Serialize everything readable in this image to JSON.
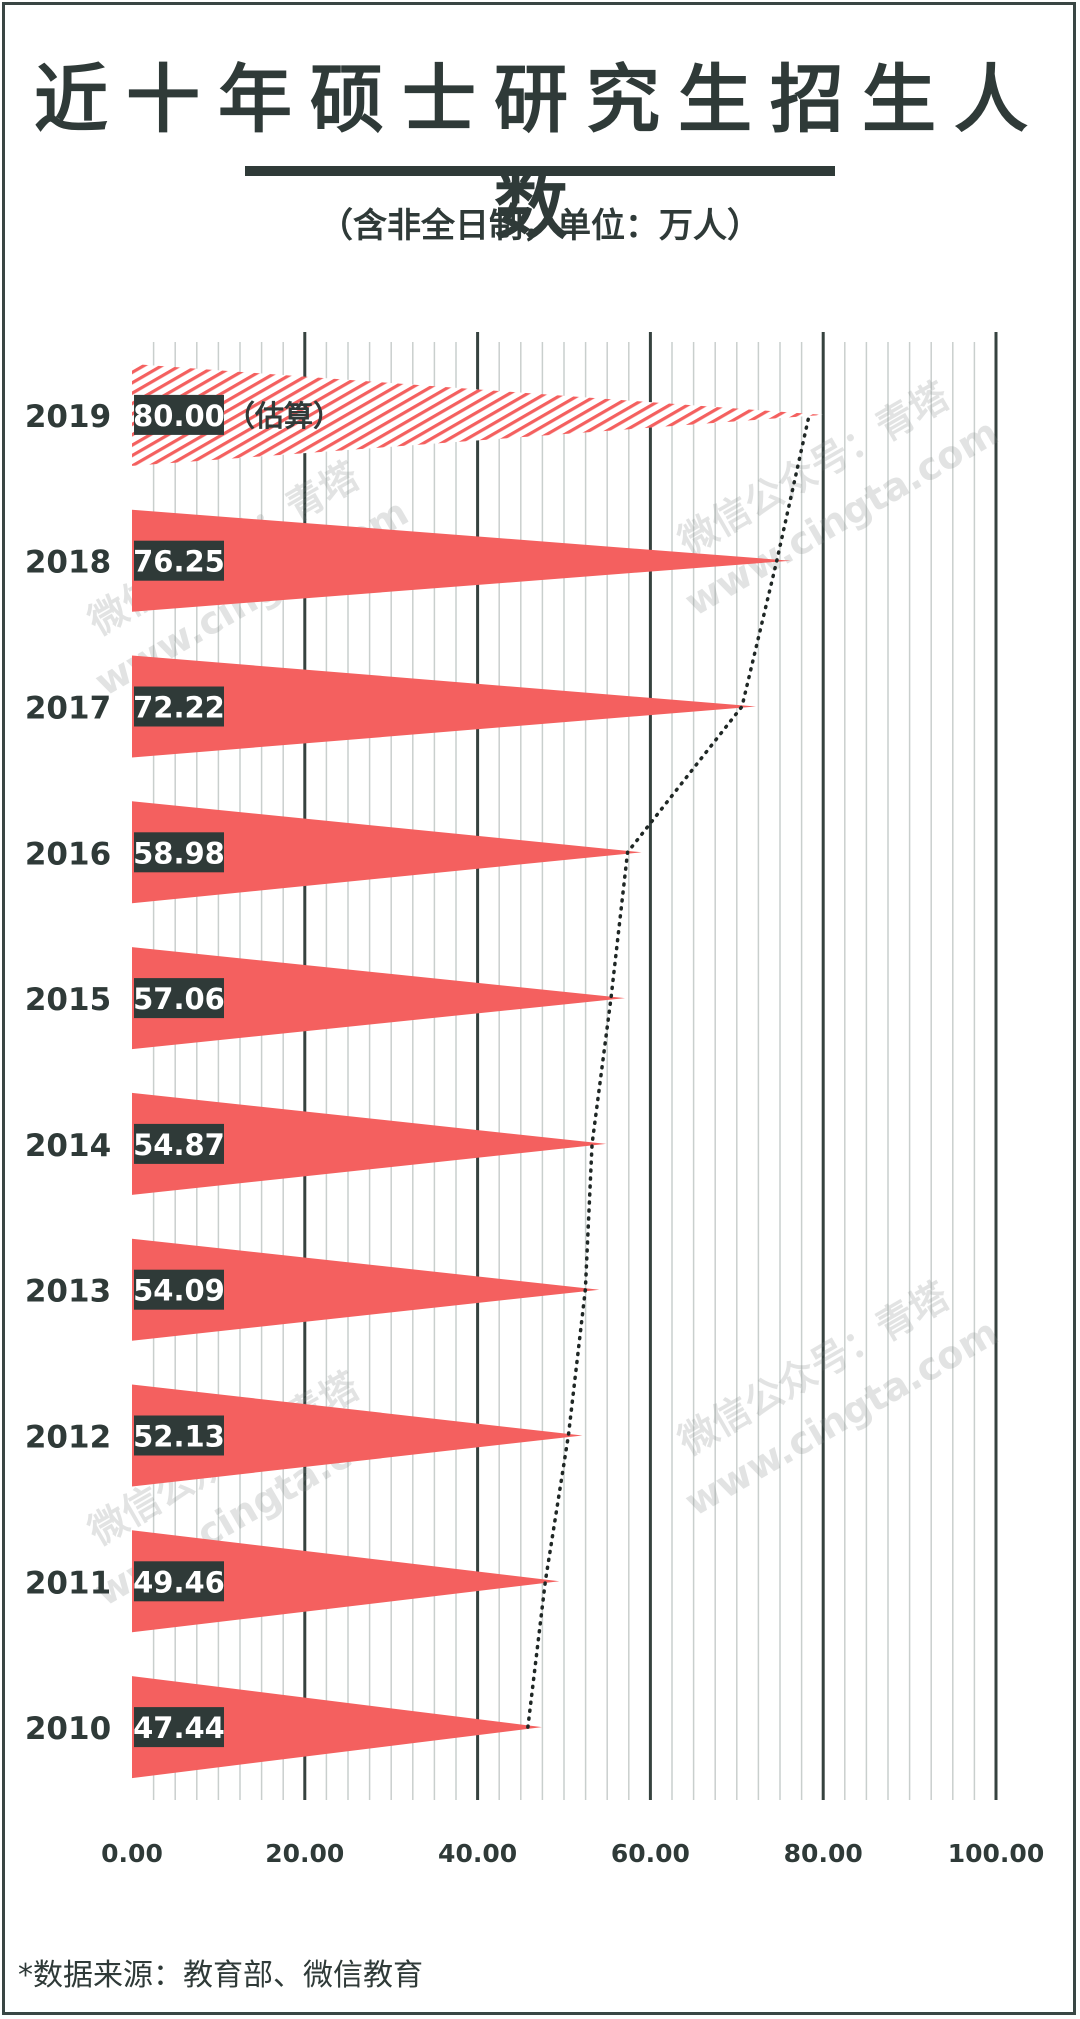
{
  "title": "近十年硕士研究生招生人数",
  "subtitle": "（含非全日制，单位：万人）",
  "source": "*数据来源：教育部、微信教育",
  "watermark_lines": [
    "微信公众号：青塔",
    "www.cingta.com"
  ],
  "colors": {
    "bar": "#f4605f",
    "bar_estimate_stripe": "#f4605f",
    "label_bg": "#2f3a38",
    "major_grid": "#36423f",
    "minor_grid": "#c9cfcd",
    "text": "#2f3a38"
  },
  "chart_data": {
    "type": "bar",
    "orientation": "horizontal",
    "bar_shape": "triangle",
    "categories": [
      "2019",
      "2018",
      "2017",
      "2016",
      "2015",
      "2014",
      "2013",
      "2012",
      "2011",
      "2010"
    ],
    "values": [
      80.0,
      76.25,
      72.22,
      58.98,
      57.06,
      54.87,
      54.09,
      52.13,
      49.46,
      47.44
    ],
    "value_labels": [
      "80.00",
      "76.25",
      "72.22",
      "58.98",
      "57.06",
      "54.87",
      "54.09",
      "52.13",
      "49.46",
      "47.44"
    ],
    "estimate_note": "（估算）",
    "estimated_category": "2019",
    "x_ticks": [
      "0.00",
      "20.00",
      "40.00",
      "60.00",
      "80.00",
      "100.00"
    ],
    "xlim": [
      0,
      100
    ],
    "grid": true,
    "trend_line": "dotted",
    "legend": "none"
  }
}
